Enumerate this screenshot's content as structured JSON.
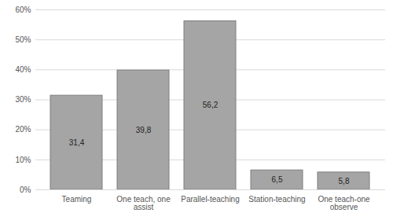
{
  "chart_data": {
    "type": "bar",
    "categories": [
      "Teaming",
      "One teach, one assist",
      "Parallel-teaching",
      "Station-teaching",
      "One teach-one observe"
    ],
    "values": [
      31.4,
      39.8,
      56.2,
      6.5,
      5.8
    ],
    "value_labels": [
      "31,4",
      "39,8",
      "56,2",
      "6,5",
      "5,8"
    ],
    "data_labels": true,
    "color": "#a5a5a5",
    "ylim": [
      0,
      60
    ],
    "yticks": [
      {
        "value": 0,
        "label": "0%"
      },
      {
        "value": 10,
        "label": "10%"
      },
      {
        "value": 20,
        "label": "20%"
      },
      {
        "value": 30,
        "label": "30%"
      },
      {
        "value": 40,
        "label": "40%"
      },
      {
        "value": 50,
        "label": "50%"
      },
      {
        "value": 60,
        "label": "60%"
      }
    ],
    "grid": true
  }
}
